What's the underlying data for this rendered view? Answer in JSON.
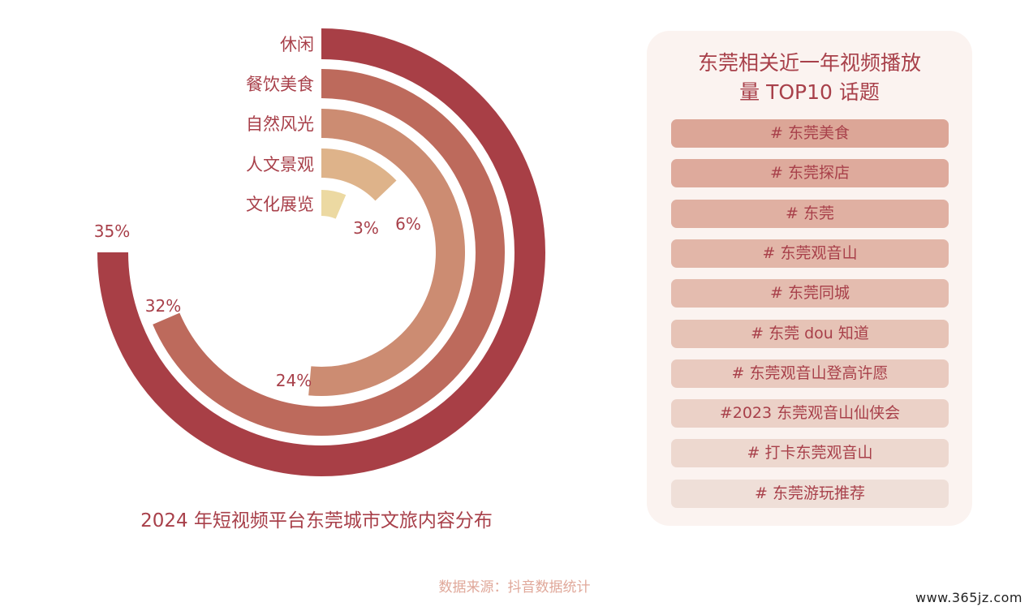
{
  "chart_data": {
    "type": "radial-bar",
    "title": "2024 年短视频平台东莞城市文旅内容分布",
    "categories": [
      "休闲",
      "餐饮美食",
      "自然风光",
      "人文景观",
      "文化展览"
    ],
    "values": [
      35,
      32,
      24,
      6,
      3
    ],
    "value_labels": [
      "35%",
      "32%",
      "24%",
      "6%",
      "3%"
    ],
    "colors": [
      "#a83f46",
      "#bd6a5c",
      "#cc8c72",
      "#deb38a",
      "#ecd9a2"
    ]
  },
  "panel": {
    "title_line1": "东莞相关近一年视频播放",
    "title_line2": "量 TOP10 话题",
    "topics": [
      "# 东莞美食",
      "# 东莞探店",
      "# 东莞",
      "# 东莞观音山",
      "# 东莞同城",
      "# 东莞 dou 知道",
      "# 东莞观音山登高许愿",
      "#2023 东莞观音山仙侠会",
      "# 打卡东莞观音山",
      "# 东莞游玩推荐"
    ],
    "topic_colors": [
      "#dca697",
      "#deaa9c",
      "#e0b0a2",
      "#e2b6a8",
      "#e4bcaf",
      "#e6c3b6",
      "#e9cabf",
      "#ebd1c7",
      "#edd8cf",
      "#efdfd8"
    ]
  },
  "source": "数据来源：抖音数据统计",
  "watermark": "www.365jz.com"
}
